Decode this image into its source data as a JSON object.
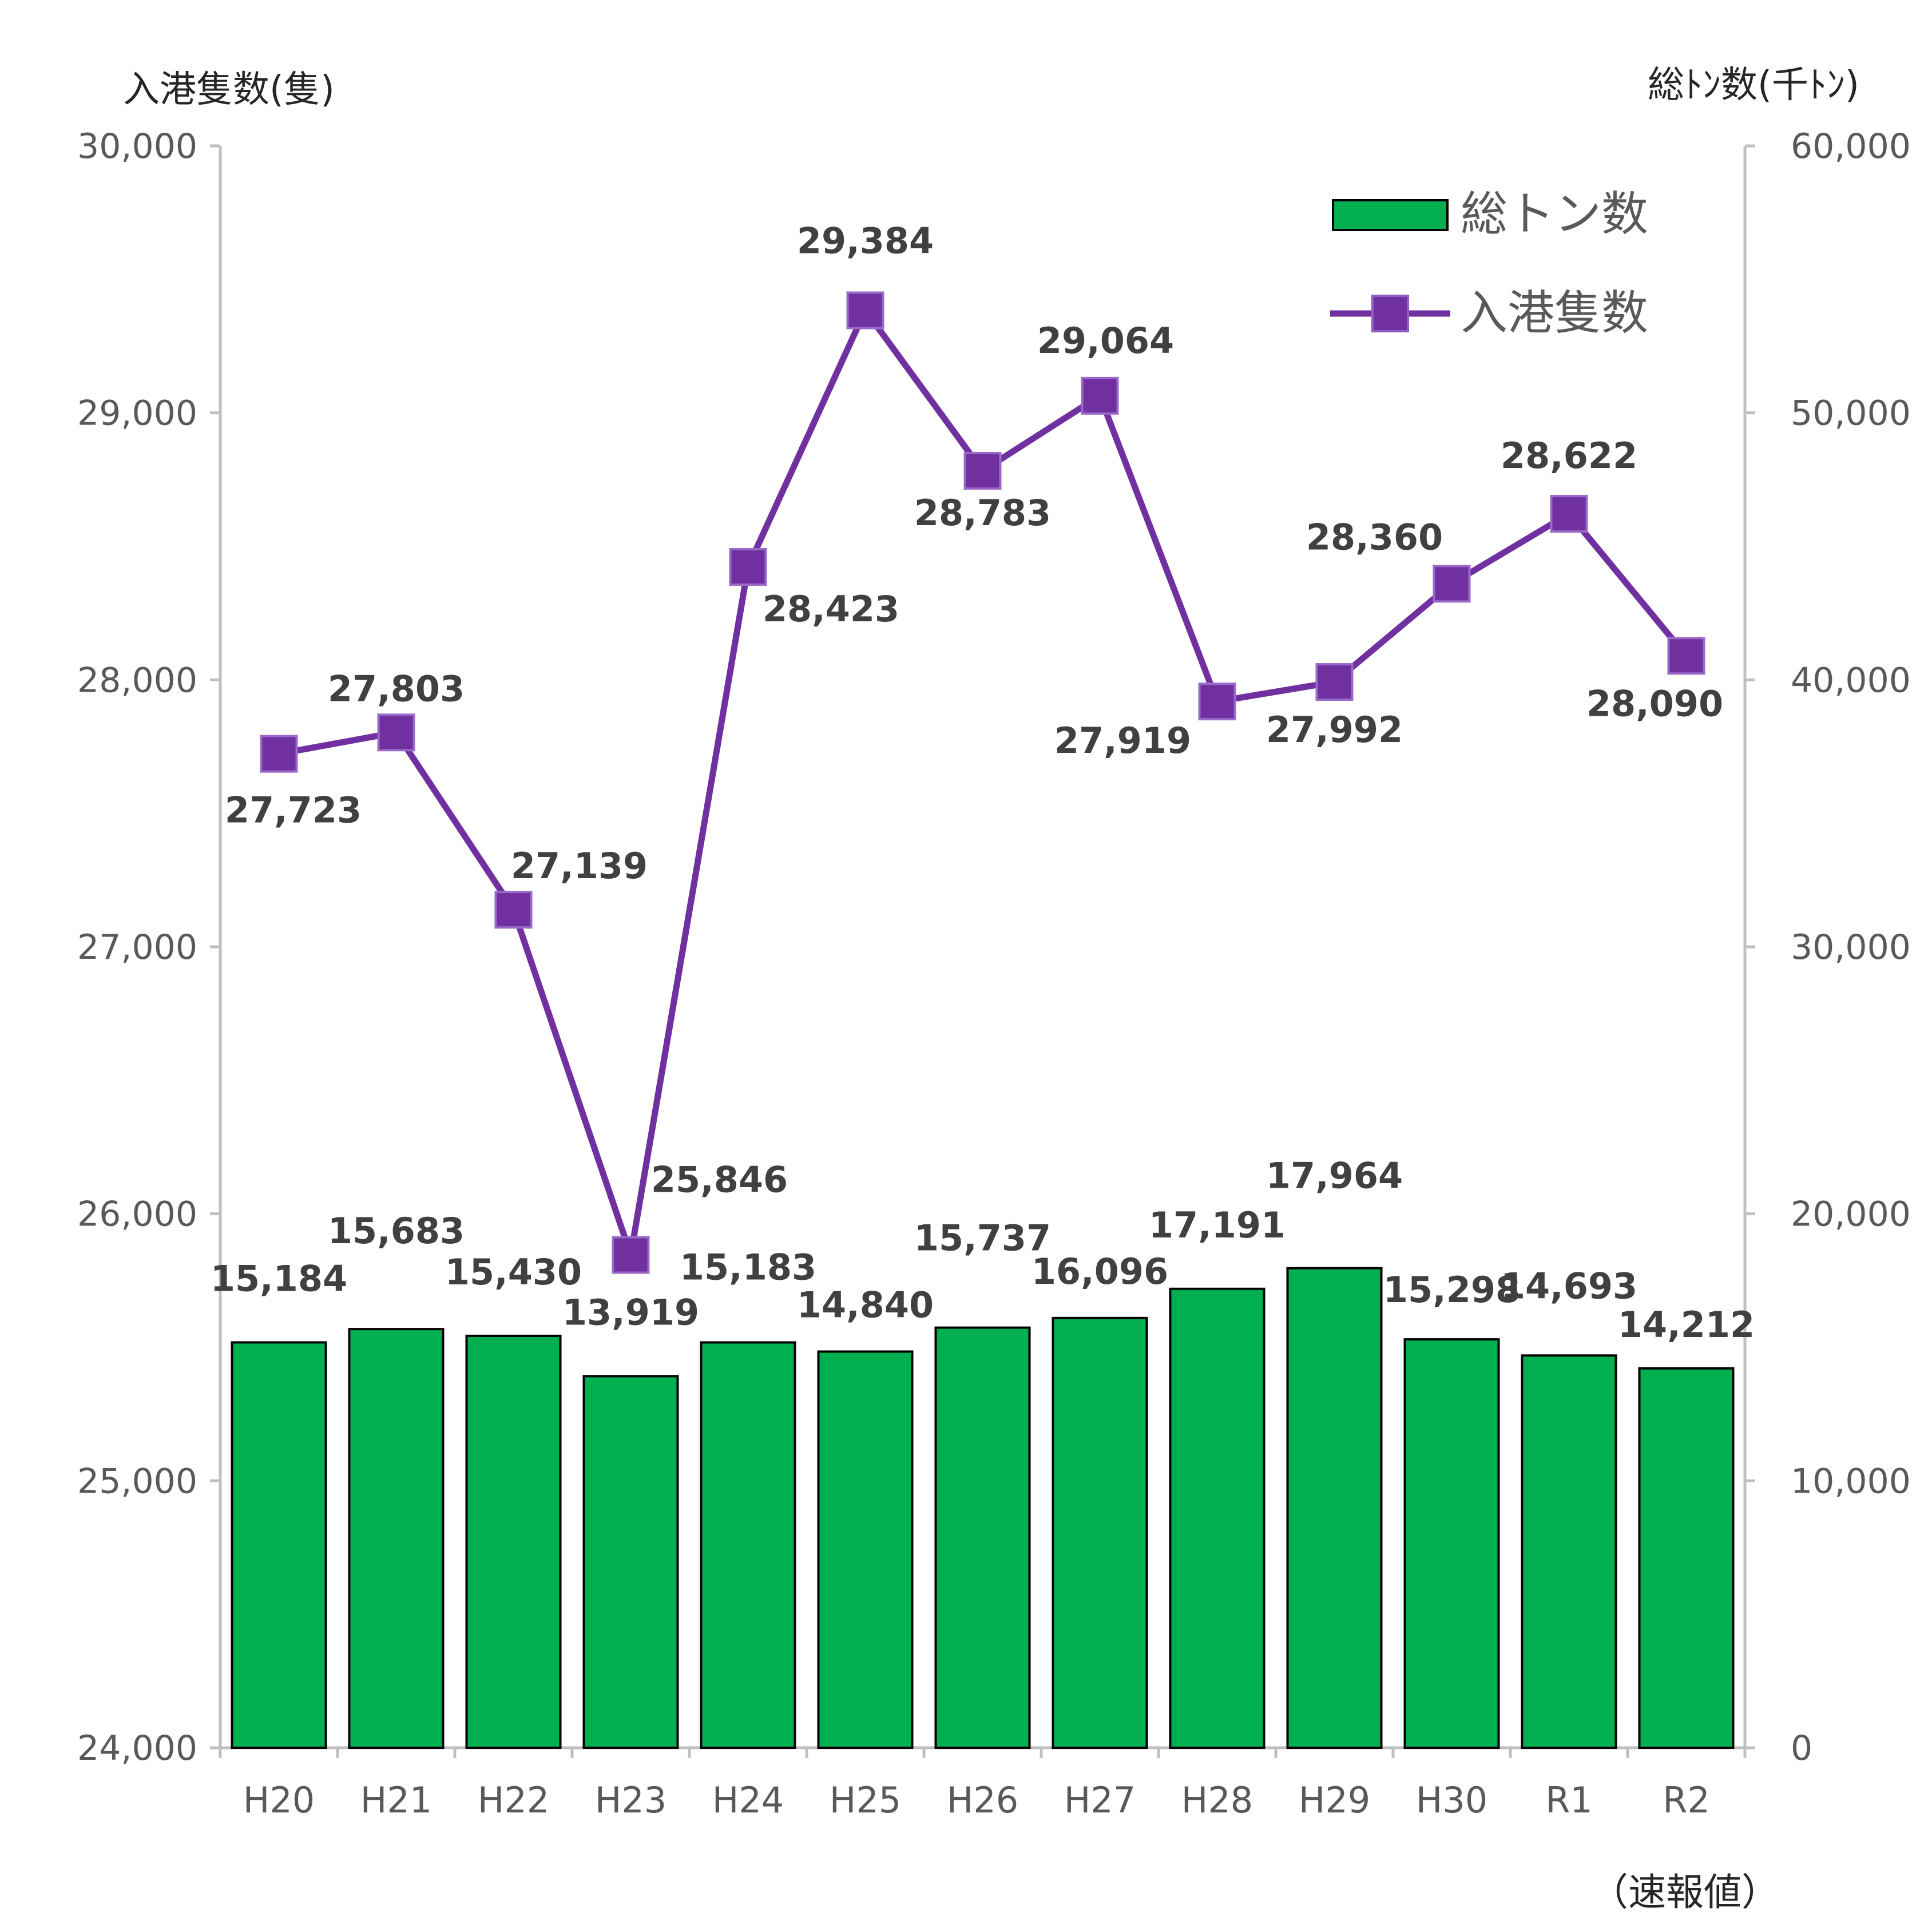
{
  "chart_data": {
    "type": "bar",
    "categories": [
      "H20",
      "H21",
      "H22",
      "H23",
      "H24",
      "H25",
      "H26",
      "H27",
      "H28",
      "H29",
      "H30",
      "R1",
      "R2"
    ],
    "series": [
      {
        "name": "総トン数",
        "type": "bar",
        "axis": "right",
        "color": "#00B050",
        "values": [
          15184,
          15683,
          15430,
          13919,
          15183,
          14840,
          15737,
          16096,
          17191,
          17964,
          15298,
          14693,
          14212
        ],
        "labels": [
          "15,184",
          "15,683",
          "15,430",
          "13,919",
          "15,183",
          "14,840",
          "15,737",
          "16,096",
          "17,191",
          "17,964",
          "15,298",
          "14,693",
          "14,212"
        ]
      },
      {
        "name": "入港隻数",
        "type": "line",
        "axis": "left",
        "color": "#7030A0",
        "marker": "square",
        "values": [
          27723,
          27803,
          27139,
          25846,
          28423,
          29384,
          28783,
          29064,
          27919,
          27992,
          28360,
          28622,
          28090
        ],
        "labels": [
          "27,723",
          "27,803",
          "27,139",
          "25,846",
          "28,423",
          "29,384",
          "28,783",
          "29,064",
          "27,919",
          "27,992",
          "28,360",
          "28,622",
          "28,090"
        ]
      }
    ],
    "left_axis": {
      "title": "入港隻数(隻)",
      "ylim": [
        24000,
        30000
      ],
      "ticks": [
        "24,000",
        "25,000",
        "26,000",
        "27,000",
        "28,000",
        "29,000",
        "30,000"
      ]
    },
    "right_axis": {
      "title": "総ﾄﾝ数(千ﾄﾝ)",
      "ylim": [
        0,
        60000
      ],
      "ticks": [
        "0",
        "10,000",
        "20,000",
        "30,000",
        "40,000",
        "50,000",
        "60,000"
      ]
    },
    "note": "（速報値）",
    "legend_position": "top-right",
    "grid": false
  }
}
